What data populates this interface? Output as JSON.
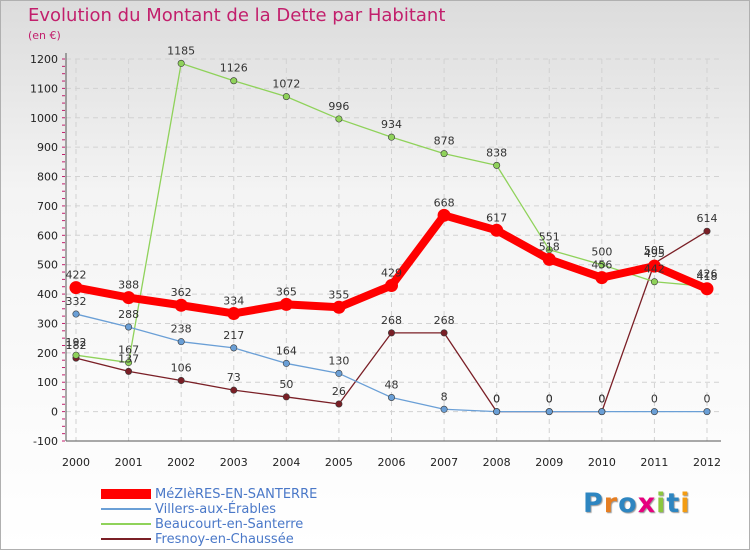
{
  "title": "Evolution du Montant de la Dette par Habitant",
  "subtitle": "(en €)",
  "brand": "Proxiti",
  "chart_data": {
    "type": "line",
    "x": [
      "2000",
      "2001",
      "2002",
      "2003",
      "2004",
      "2005",
      "2006",
      "2007",
      "2008",
      "2009",
      "2010",
      "2011",
      "2012"
    ],
    "ylim": [
      -100,
      1200
    ],
    "yticks": [
      "-100",
      "0",
      "100",
      "200",
      "300",
      "400",
      "500",
      "600",
      "700",
      "800",
      "900",
      "1000",
      "1100",
      "1200"
    ],
    "grid": true,
    "legend_position": "bottom-left",
    "series": [
      {
        "name": "MéZIèRES-EN-SANTERRE",
        "color": "#ff0000",
        "values": [
          422,
          388,
          362,
          334,
          365,
          355,
          429,
          668,
          617,
          518,
          456,
          495,
          418
        ]
      },
      {
        "name": "Villers-aux-Érables",
        "color": "#6a9fd6",
        "values": [
          332,
          288,
          238,
          217,
          164,
          130,
          48,
          8,
          0,
          0,
          0,
          0,
          0
        ]
      },
      {
        "name": "Beaucourt-en-Santerre",
        "color": "#8fd25a",
        "values": [
          192,
          167,
          1185,
          1126,
          1072,
          996,
          934,
          878,
          838,
          551,
          500,
          442,
          426
        ]
      },
      {
        "name": "Fresnoy-en-Chaussée",
        "color": "#7a1f26",
        "values": [
          182,
          137,
          106,
          73,
          50,
          26,
          268,
          268,
          0,
          0,
          0,
          505,
          614
        ]
      }
    ]
  }
}
